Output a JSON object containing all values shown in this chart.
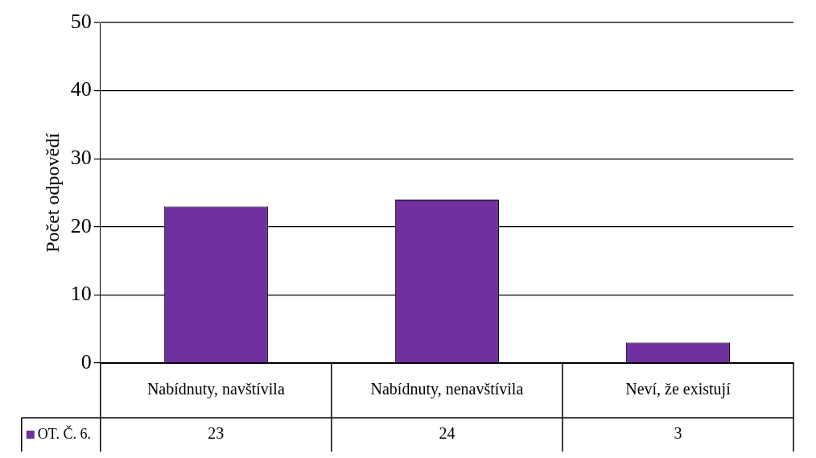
{
  "chart_data": {
    "type": "bar",
    "ylabel": "Počet odpovědí",
    "categories": [
      "Nabídnuty, navštívila",
      "Nabídnuty, nenavštívila",
      "Neví, že existují"
    ],
    "series": [
      {
        "name": "OT. Č. 6.",
        "color": "#7030a0",
        "values": [
          23,
          24,
          3
        ]
      }
    ],
    "ylim": [
      0,
      50
    ],
    "yticks": [
      0,
      10,
      20,
      30,
      40,
      50
    ],
    "grid": "y",
    "data_labels": true,
    "legend": "bottom left"
  }
}
